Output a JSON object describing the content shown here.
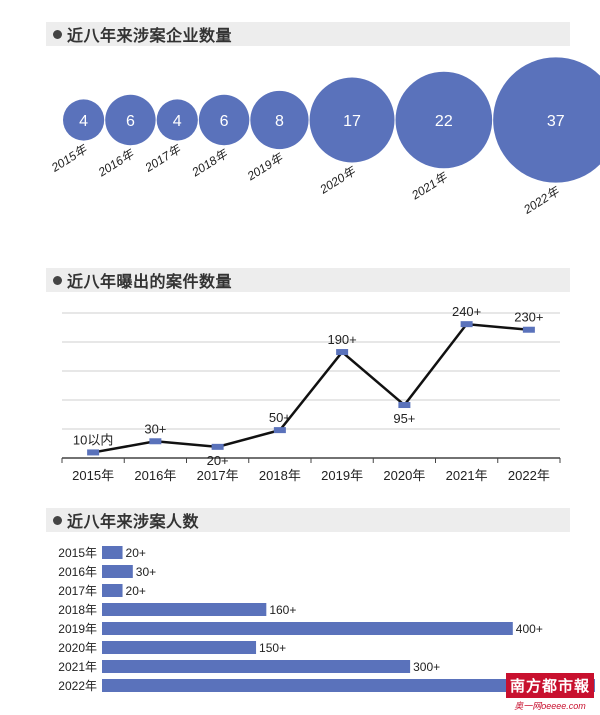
{
  "chart_data": [
    {
      "type": "bubble",
      "title": "近八年来涉案企业数量",
      "categories": [
        "2015年",
        "2016年",
        "2017年",
        "2018年",
        "2019年",
        "2020年",
        "2021年",
        "2022年"
      ],
      "values": [
        4,
        6,
        4,
        6,
        8,
        17,
        22,
        37
      ],
      "labels": [
        "4",
        "6",
        "4",
        "6",
        "8",
        "17",
        "22",
        "37"
      ],
      "color": "#5a72bb"
    },
    {
      "type": "line",
      "title": "近八年曝出的案件数量",
      "categories": [
        "2015年",
        "2016年",
        "2017年",
        "2018年",
        "2019年",
        "2020年",
        "2021年",
        "2022年"
      ],
      "values": [
        10,
        30,
        20,
        50,
        190,
        95,
        240,
        230
      ],
      "labels": [
        "10以内",
        "30+",
        "20+",
        "50+",
        "190+",
        "95+",
        "240+",
        "230+"
      ],
      "ylim": [
        0,
        260
      ],
      "grid": true,
      "line_color": "#111111",
      "marker_color": "#5a72bb"
    },
    {
      "type": "bar",
      "orientation": "horizontal",
      "title": "近八年来涉案人数",
      "categories": [
        "2015年",
        "2016年",
        "2017年",
        "2018年",
        "2019年",
        "2020年",
        "2021年",
        "2022年"
      ],
      "values": [
        20,
        30,
        20,
        160,
        400,
        150,
        300,
        480
      ],
      "labels": [
        "20+",
        "30+",
        "20+",
        "160+",
        "400+",
        "150+",
        "300+",
        ""
      ],
      "color": "#5a72bb"
    }
  ],
  "watermark": {
    "top": "南方都市報",
    "bottom": "奥一网oeeee.com"
  }
}
